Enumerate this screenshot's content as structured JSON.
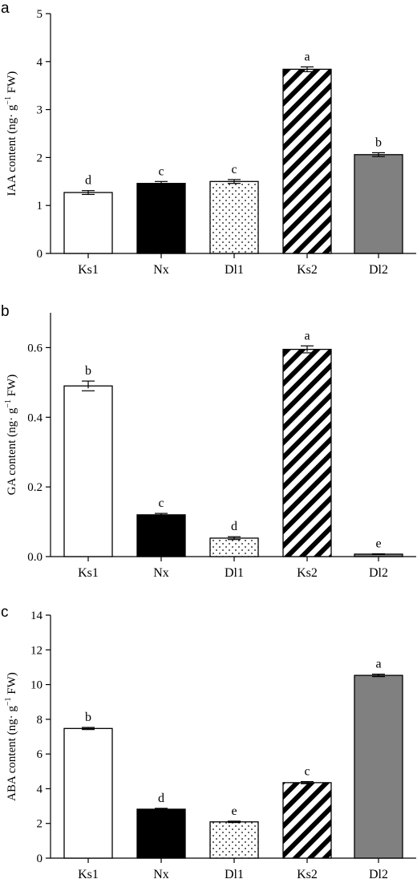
{
  "chart_data": [
    {
      "type": "bar",
      "panel": "a",
      "ylabel": {
        "pre": "IAA content (ng· g",
        "sup": "−1",
        "post": " FW)"
      },
      "ylim": [
        0,
        5
      ],
      "yticks": [
        "0",
        "1",
        "2",
        "3",
        "4",
        "5"
      ],
      "categories": [
        "Ks1",
        "Nx",
        "Dl1",
        "Ks2",
        "Dl2"
      ],
      "values": [
        1.27,
        1.46,
        1.5,
        3.84,
        2.06
      ],
      "errors": [
        0.04,
        0.04,
        0.04,
        0.05,
        0.04
      ],
      "significance": [
        "d",
        "c",
        "c",
        "a",
        "b"
      ]
    },
    {
      "type": "bar",
      "panel": "b",
      "ylabel": {
        "pre": "GA content (ng· g",
        "sup": "−1",
        "post": " FW)"
      },
      "ylim": [
        0,
        0.7
      ],
      "yticks": [
        "0.0",
        "0.2",
        "0.4",
        "0.6"
      ],
      "categories": [
        "Ks1",
        "Nx",
        "Dl1",
        "Ks2",
        "Dl2"
      ],
      "values": [
        0.49,
        0.12,
        0.053,
        0.595,
        0.007
      ],
      "errors": [
        0.014,
        0.004,
        0.004,
        0.01,
        0.001
      ],
      "significance": [
        "b",
        "c",
        "d",
        "a",
        "e"
      ]
    },
    {
      "type": "bar",
      "panel": "c",
      "ylabel": {
        "pre": "ABA content (ng· g",
        "sup": "−1",
        "post": " FW)"
      },
      "ylim": [
        0,
        14
      ],
      "yticks": [
        "0",
        "2",
        "4",
        "6",
        "8",
        "10",
        "12",
        "14"
      ],
      "categories": [
        "Ks1",
        "Nx",
        "Dl1",
        "Ks2",
        "Dl2"
      ],
      "values": [
        7.47,
        2.82,
        2.09,
        4.35,
        10.53
      ],
      "errors": [
        0.06,
        0.05,
        0.04,
        0.06,
        0.07
      ],
      "significance": [
        "b",
        "d",
        "e",
        "c",
        "a"
      ]
    }
  ],
  "bar_styles": [
    "white",
    "black",
    "dots",
    "stripes",
    "gray"
  ],
  "colors": {
    "axis": "#000000",
    "black_bar": "#000000",
    "gray_bar": "#808080",
    "white_bar": "#ffffff"
  }
}
